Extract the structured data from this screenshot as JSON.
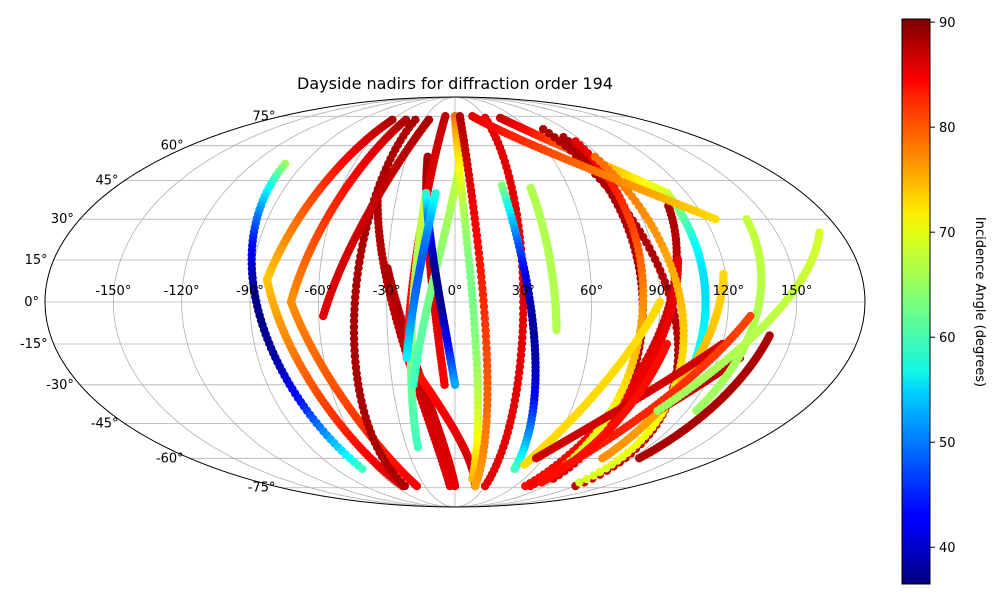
{
  "chart_data": {
    "type": "scatter",
    "projection": "mollweide",
    "title": "Dayside nadirs for diffraction order 194",
    "grid": true,
    "lon_ticks": [
      -150,
      -120,
      -90,
      -60,
      -30,
      0,
      30,
      60,
      90,
      120,
      150
    ],
    "lat_ticks": [
      -75,
      -60,
      -45,
      -30,
      -15,
      0,
      15,
      30,
      45,
      60,
      75
    ],
    "lon_tick_labels": [
      "-150°",
      "-120°",
      "-90°",
      "-60°",
      "-30°",
      "0°",
      "30°",
      "60°",
      "90°",
      "120°",
      "150°"
    ],
    "lat_tick_labels": [
      "-75°",
      "-60°",
      "-45°",
      "-30°",
      "-15°",
      "0°",
      "15°",
      "30°",
      "45°",
      "60°",
      "75°"
    ],
    "colorbar": {
      "label": "Incidence Angle (degrees)",
      "colormap": "jet",
      "range": [
        36.5,
        90.3
      ],
      "ticks": [
        40,
        50,
        60,
        70,
        80,
        90
      ],
      "tick_labels": [
        "40",
        "50",
        "60",
        "70",
        "80",
        "90"
      ],
      "placement": "right"
    },
    "tracks": [
      {
        "id": 1,
        "lat_start": 52,
        "lon_start": -101,
        "lat_end": -65,
        "lon_end": -70,
        "inc_start": 65,
        "inc_end": 60,
        "inc_min": 37
      },
      {
        "id": 2,
        "lat_start": 73,
        "lon_start": -60,
        "lat_end": 8,
        "lon_end": -83,
        "inc_start": 88,
        "inc_end": 73
      },
      {
        "id": 3,
        "lat_start": 8,
        "lon_start": -83,
        "lat_end": -74,
        "lon_end": -52,
        "inc_start": 73,
        "inc_end": 86
      },
      {
        "id": 4,
        "lat_start": 73,
        "lon_start": -47,
        "lat_end": 0,
        "lon_end": -72,
        "inc_start": 88,
        "inc_end": 76
      },
      {
        "id": 5,
        "lat_start": 0,
        "lon_start": -72,
        "lat_end": -74,
        "lon_end": -38,
        "inc_start": 76,
        "inc_end": 84
      },
      {
        "id": 6,
        "lat_start": 73,
        "lon_start": -38,
        "lat_end": -74,
        "lon_end": -50,
        "inc_start": 88,
        "inc_end": 88
      },
      {
        "id": 7,
        "lat_start": 40,
        "lon_start": -40,
        "lat_end": -74,
        "lon_end": -5,
        "inc_start": 88,
        "inc_end": 85
      },
      {
        "id": 8,
        "lat_start": 73,
        "lon_start": -25,
        "lat_end": -5,
        "lon_end": -58,
        "inc_start": 88,
        "inc_end": 85
      },
      {
        "id": 9,
        "lat_start": 55,
        "lon_start": -17,
        "lat_end": -30,
        "lon_end": -5,
        "inc_start": 88,
        "inc_end": 84
      },
      {
        "id": 10,
        "lat_start": 12,
        "lon_start": -30,
        "lat_end": -74,
        "lon_end": 0,
        "inc_start": 88,
        "inc_end": 85
      },
      {
        "id": 11,
        "lat_start": 75,
        "lon_start": -10,
        "lat_end": -20,
        "lon_end": -22,
        "inc_start": 87,
        "inc_end": 82
      },
      {
        "id": 12,
        "lat_start": -20,
        "lon_start": -22,
        "lat_end": -74,
        "lon_end": 20,
        "inc_start": 82,
        "inc_end": 87
      },
      {
        "id": 13,
        "lat_start": 40,
        "lon_start": -15,
        "lat_end": -55,
        "lon_end": -23,
        "inc_start": 68,
        "inc_end": 60
      },
      {
        "id": 14,
        "lat_start": 60,
        "lon_start": 5,
        "lat_end": -30,
        "lon_end": -20,
        "inc_start": 68,
        "inc_end": 60
      },
      {
        "id": 15,
        "lat_start": 40,
        "lon_start": -15,
        "lat_end": -30,
        "lon_end": 0,
        "inc_start": 60,
        "inc_end": 52,
        "inc_min": 37
      },
      {
        "id": 16,
        "lat_start": 40,
        "lon_start": -10,
        "lat_end": -20,
        "lon_end": -22,
        "inc_start": 59,
        "inc_end": 56,
        "inc_min": 48
      },
      {
        "id": 17,
        "lat_start": 75,
        "lon_start": 0,
        "lat_end": -70,
        "lon_end": 15,
        "inc_start": 78,
        "inc_end": 74,
        "inc_min": 63
      },
      {
        "id": 18,
        "lat_start": 75,
        "lon_start": 5,
        "lat_end": -74,
        "lon_end": 20,
        "inc_start": 88,
        "inc_end": 75
      },
      {
        "id": 19,
        "lat_start": 74,
        "lon_start": 30,
        "lat_end": -74,
        "lon_end": 30,
        "inc_start": 85,
        "inc_end": 85
      },
      {
        "id": 20,
        "lat_start": 43,
        "lon_start": 25,
        "lat_end": -65,
        "lon_end": 45,
        "inc_start": 64,
        "inc_end": 60,
        "inc_min": 38
      },
      {
        "id": 21,
        "lat_start": 42,
        "lon_start": 40,
        "lat_end": -10,
        "lon_end": 45,
        "inc_start": 66,
        "inc_end": 66
      },
      {
        "id": 22,
        "lat_start": 74,
        "lon_start": 45,
        "lat_end": 40,
        "lon_end": 110,
        "inc_start": 87,
        "inc_end": 68
      },
      {
        "id": 23,
        "lat_start": 40,
        "lon_start": 110,
        "lat_end": -30,
        "lon_end": 110,
        "inc_start": 68,
        "inc_end": 58,
        "inc_min": 55
      },
      {
        "id": 24,
        "lat_start": 68,
        "lon_start": 72,
        "lat_end": -74,
        "lon_end": 120,
        "inc_start": 88,
        "inc_end": 87
      },
      {
        "id": 25,
        "lat_start": 64,
        "lon_start": 80,
        "lat_end": -70,
        "lon_end": 85,
        "inc_start": 88,
        "inc_end": 87
      },
      {
        "id": 26,
        "lat_start": 35,
        "lon_start": 106,
        "lat_end": -74,
        "lon_end": 70,
        "inc_start": 88,
        "inc_end": 83
      },
      {
        "id": 27,
        "lat_start": 15,
        "lon_start": 100,
        "lat_end": -74,
        "lon_end": 75,
        "inc_start": 85,
        "inc_end": 84
      },
      {
        "id": 28,
        "lat_start": 62,
        "lon_start": 85,
        "lat_end": -65,
        "lon_end": 80,
        "inc_start": 85,
        "inc_end": 67
      },
      {
        "id": 29,
        "lat_start": 55,
        "lon_start": 87,
        "lat_end": -72,
        "lon_end": 115,
        "inc_start": 78,
        "inc_end": 68
      },
      {
        "id": 30,
        "lat_start": 10,
        "lon_start": 119,
        "lat_end": -60,
        "lon_end": 100,
        "inc_start": 72,
        "inc_end": 76
      },
      {
        "id": 31,
        "lat_start": 0,
        "lon_start": 90,
        "lat_end": -63,
        "lon_end": 50,
        "inc_start": 72,
        "inc_end": 72
      },
      {
        "id": 32,
        "lat_start": -15,
        "lon_start": 120,
        "lat_end": -60,
        "lon_end": 55,
        "inc_start": 86,
        "inc_end": 86
      },
      {
        "id": 33,
        "lat_start": -20,
        "lon_start": 130,
        "lat_end": -40,
        "lon_end": 105,
        "inc_start": 88,
        "inc_end": 86
      },
      {
        "id": 34,
        "lat_start": 30,
        "lon_start": 140,
        "lat_end": -40,
        "lon_end": 125,
        "inc_start": 67,
        "inc_end": 65
      },
      {
        "id": 35,
        "lat_start": -5,
        "lon_start": 130,
        "lat_end": -70,
        "lon_end": 75,
        "inc_start": 80,
        "inc_end": 83
      },
      {
        "id": 36,
        "lat_start": 75,
        "lon_start": 18,
        "lat_end": 30,
        "lon_end": 125,
        "inc_start": 85,
        "inc_end": 72
      },
      {
        "id": 37,
        "lat_start": 25,
        "lon_start": 170,
        "lat_end": -40,
        "lon_end": 105,
        "inc_start": 68,
        "inc_end": 65
      },
      {
        "id": 38,
        "lat_start": -12,
        "lon_start": 140,
        "lat_end": -60,
        "lon_end": 125,
        "inc_start": 88,
        "inc_end": 88
      },
      {
        "id": 39,
        "lat_start": -15,
        "lon_start": 95,
        "lat_end": -72,
        "lon_end": 80,
        "inc_start": 83,
        "inc_end": 83
      }
    ]
  }
}
